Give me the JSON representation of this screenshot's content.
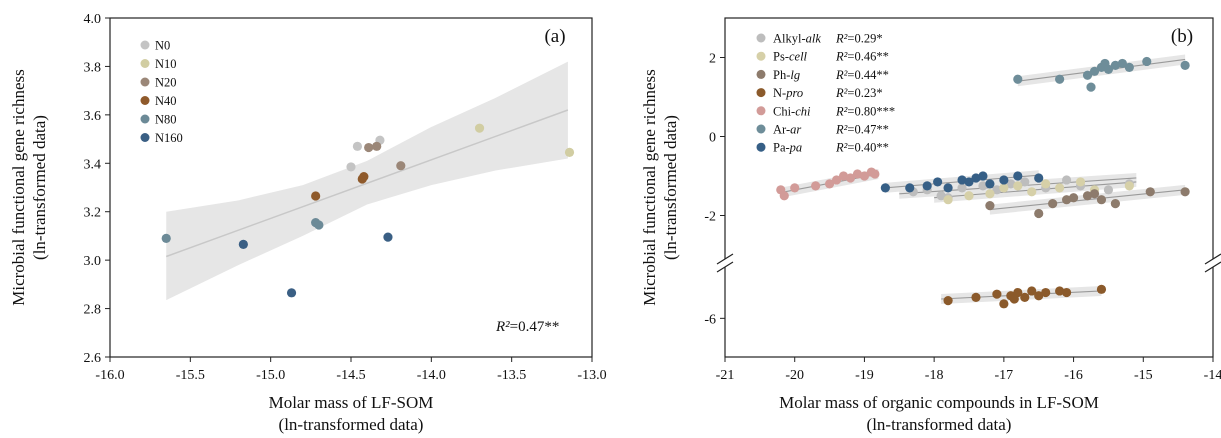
{
  "chart_data": [
    {
      "type": "scatter",
      "panel_label": "(a)",
      "xlabel": [
        "Molar mass of LF-SOM",
        "(ln-transformed data)"
      ],
      "ylabel": [
        "Microbial functional gene richness",
        "(ln-transformed data)"
      ],
      "xlim": [
        -16.0,
        -13.0
      ],
      "ylim": [
        2.6,
        4.0
      ],
      "xticks": [
        -16.0,
        -15.5,
        -15.0,
        -14.5,
        -14.0,
        -13.5,
        -13.0
      ],
      "xtick_labels": [
        "-16.0",
        "-15.5",
        "-15.0",
        "-14.5",
        "-14.0",
        "-13.5",
        "-13.0"
      ],
      "yticks": [
        2.6,
        2.8,
        3.0,
        3.2,
        3.4,
        3.6,
        3.8,
        4.0
      ],
      "ytick_labels": [
        "2.6",
        "2.8",
        "3.0",
        "3.2",
        "3.4",
        "3.6",
        "3.8",
        "4.0"
      ],
      "legend_position": "top-left",
      "annotation_r2": {
        "prefix": "R²",
        "value": "=0.47**"
      },
      "fit": {
        "x": [
          -15.65,
          -13.15
        ],
        "y": [
          3.015,
          3.62
        ],
        "band_x": [
          -15.65,
          -15.2,
          -14.8,
          -14.4,
          -14.0,
          -13.6,
          -13.15
        ],
        "band_upper": [
          3.2,
          3.247,
          3.31,
          3.41,
          3.55,
          3.67,
          3.82
        ],
        "band_lower": [
          2.835,
          2.98,
          3.1,
          3.23,
          3.31,
          3.37,
          3.42
        ]
      },
      "series": [
        {
          "name": "N0",
          "color": "#c4c4c4",
          "x": [
            -14.46,
            -14.5,
            -14.32
          ],
          "y": [
            3.47,
            3.385,
            3.495
          ]
        },
        {
          "name": "N10",
          "color": "#d1cda2",
          "x": [
            -13.7,
            -13.14
          ],
          "y": [
            3.545,
            3.445
          ]
        },
        {
          "name": "N20",
          "color": "#9b8778",
          "x": [
            -14.39,
            -14.34,
            -14.19
          ],
          "y": [
            3.465,
            3.47,
            3.39
          ]
        },
        {
          "name": "N40",
          "color": "#8f5a2b",
          "x": [
            -14.72,
            -14.43,
            -14.42
          ],
          "y": [
            3.265,
            3.335,
            3.345
          ]
        },
        {
          "name": "N80",
          "color": "#6c8a97",
          "x": [
            -15.65,
            -14.72,
            -14.7
          ],
          "y": [
            3.09,
            3.155,
            3.145
          ]
        },
        {
          "name": "N160",
          "color": "#3a5f84",
          "x": [
            -15.17,
            -14.87,
            -14.27
          ],
          "y": [
            3.065,
            2.865,
            3.095
          ]
        }
      ]
    },
    {
      "type": "scatter",
      "panel_label": "(b)",
      "xlabel": [
        "Molar mass of organic compounds in LF-SOM",
        "(ln-transformed data)"
      ],
      "ylabel": [
        "Microbial functional gene richness",
        "(ln-transformed data)"
      ],
      "xlim": [
        -21,
        -14
      ],
      "ylim": [
        -7.2,
        3.0
      ],
      "axis_break": true,
      "xticks": [
        -21,
        -20,
        -19,
        -18,
        -17,
        -16,
        -15,
        -14
      ],
      "xtick_labels": [
        "-21",
        "-20",
        "-19",
        "-18",
        "-17",
        "-16",
        "-15",
        "-14"
      ],
      "yticks": [
        -6,
        -2,
        0,
        2
      ],
      "ytick_labels": [
        "-6",
        "-2",
        "0",
        "2"
      ],
      "legend_position": "top-left",
      "series": [
        {
          "name_plain": "Alkyl-",
          "name_italic": "alk",
          "r2_prefix": "R²",
          "r2_value": "=0.29*",
          "color": "#bdbdbd",
          "x": [
            -18.3,
            -18.1,
            -17.9,
            -17.6,
            -17.3,
            -17.1,
            -16.9,
            -16.7,
            -16.4,
            -16.1,
            -15.9,
            -15.5,
            -15.2,
            -17.8
          ],
          "y": [
            -1.4,
            -1.35,
            -1.5,
            -1.3,
            -1.25,
            -1.35,
            -1.2,
            -1.15,
            -1.3,
            -1.1,
            -1.25,
            -1.35,
            -1.2,
            -1.55
          ],
          "fit_x": [
            -18.5,
            -15.1
          ],
          "fit_y": [
            -1.45,
            -1.05
          ]
        },
        {
          "name_plain": "Ps-",
          "name_italic": "cell",
          "r2_prefix": "R²",
          "r2_value": "=0.46**",
          "color": "#d6d0a8",
          "x": [
            -17.8,
            -17.5,
            -17.2,
            -17.0,
            -16.8,
            -16.6,
            -16.4,
            -16.2,
            -15.9,
            -15.7,
            -15.2
          ],
          "y": [
            -1.6,
            -1.5,
            -1.45,
            -1.3,
            -1.25,
            -1.4,
            -1.2,
            -1.3,
            -1.15,
            -1.35,
            -1.25
          ],
          "fit_x": [
            -18.0,
            -15.1
          ],
          "fit_y": [
            -1.55,
            -1.15
          ]
        },
        {
          "name_plain": "Ph-",
          "name_italic": "lg",
          "r2_prefix": "R²",
          "r2_value": "=0.44**",
          "color": "#8d7b6c",
          "x": [
            -17.2,
            -16.5,
            -16.3,
            -16.1,
            -16.0,
            -15.8,
            -15.7,
            -15.6,
            -15.4,
            -14.9,
            -14.4
          ],
          "y": [
            -1.75,
            -1.95,
            -1.7,
            -1.6,
            -1.55,
            -1.5,
            -1.45,
            -1.6,
            -1.7,
            -1.4,
            -1.4
          ],
          "fit_x": [
            -17.2,
            -14.4
          ],
          "fit_y": [
            -1.85,
            -1.35
          ]
        },
        {
          "name_plain": "N-",
          "name_italic": "pro",
          "r2_prefix": "R²",
          "r2_value": "=0.23*",
          "color": "#8b5a2b",
          "x": [
            -17.8,
            -17.4,
            -17.1,
            -16.9,
            -16.8,
            -16.7,
            -16.6,
            -16.5,
            -16.4,
            -16.2,
            -16.1,
            -15.6,
            -17.0,
            -16.85
          ],
          "y": [
            -5.45,
            -5.35,
            -5.25,
            -5.3,
            -5.2,
            -5.35,
            -5.15,
            -5.3,
            -5.2,
            -5.15,
            -5.2,
            -5.1,
            -5.55,
            -5.4
          ],
          "fit_x": [
            -17.9,
            -15.6
          ],
          "fit_y": [
            -5.4,
            -5.15
          ]
        },
        {
          "name_plain": "Chi-",
          "name_italic": "chi",
          "r2_prefix": "R²",
          "r2_value": "=0.80***",
          "color": "#d29b98",
          "x": [
            -20.2,
            -20.0,
            -19.7,
            -19.5,
            -19.4,
            -19.3,
            -19.2,
            -19.1,
            -19.0,
            -18.9,
            -18.85,
            -20.15
          ],
          "y": [
            -1.35,
            -1.3,
            -1.25,
            -1.2,
            -1.1,
            -1.0,
            -1.05,
            -0.95,
            -1.0,
            -0.9,
            -0.95,
            -1.5
          ],
          "fit_x": [
            -20.2,
            -18.8
          ],
          "fit_y": [
            -1.42,
            -0.95
          ]
        },
        {
          "name_plain": "Ar-",
          "name_italic": "ar",
          "r2_prefix": "R²",
          "r2_value": "=0.47**",
          "color": "#6e8d99",
          "x": [
            -16.8,
            -16.2,
            -15.8,
            -15.7,
            -15.6,
            -15.55,
            -15.5,
            -15.4,
            -15.3,
            -15.2,
            -14.95,
            -14.4,
            -15.75
          ],
          "y": [
            1.45,
            1.45,
            1.55,
            1.65,
            1.75,
            1.85,
            1.7,
            1.8,
            1.85,
            1.75,
            1.9,
            1.8,
            1.25
          ],
          "fit_x": [
            -16.8,
            -14.4
          ],
          "fit_y": [
            1.4,
            1.95
          ]
        },
        {
          "name_plain": "Pa-",
          "name_italic": "pa",
          "r2_prefix": "R²",
          "r2_value": "=0.40**",
          "color": "#365f86",
          "x": [
            -18.7,
            -18.35,
            -18.1,
            -17.95,
            -17.8,
            -17.6,
            -17.4,
            -17.2,
            -17.0,
            -16.8,
            -16.5,
            -17.5,
            -17.3
          ],
          "y": [
            -1.3,
            -1.3,
            -1.25,
            -1.15,
            -1.3,
            -1.1,
            -1.05,
            -1.2,
            -1.1,
            -1.0,
            -1.05,
            -1.15,
            -1.0
          ],
          "fit_x": [
            -18.7,
            -16.5
          ],
          "fit_y": [
            -1.3,
            -0.98
          ]
        }
      ]
    }
  ]
}
